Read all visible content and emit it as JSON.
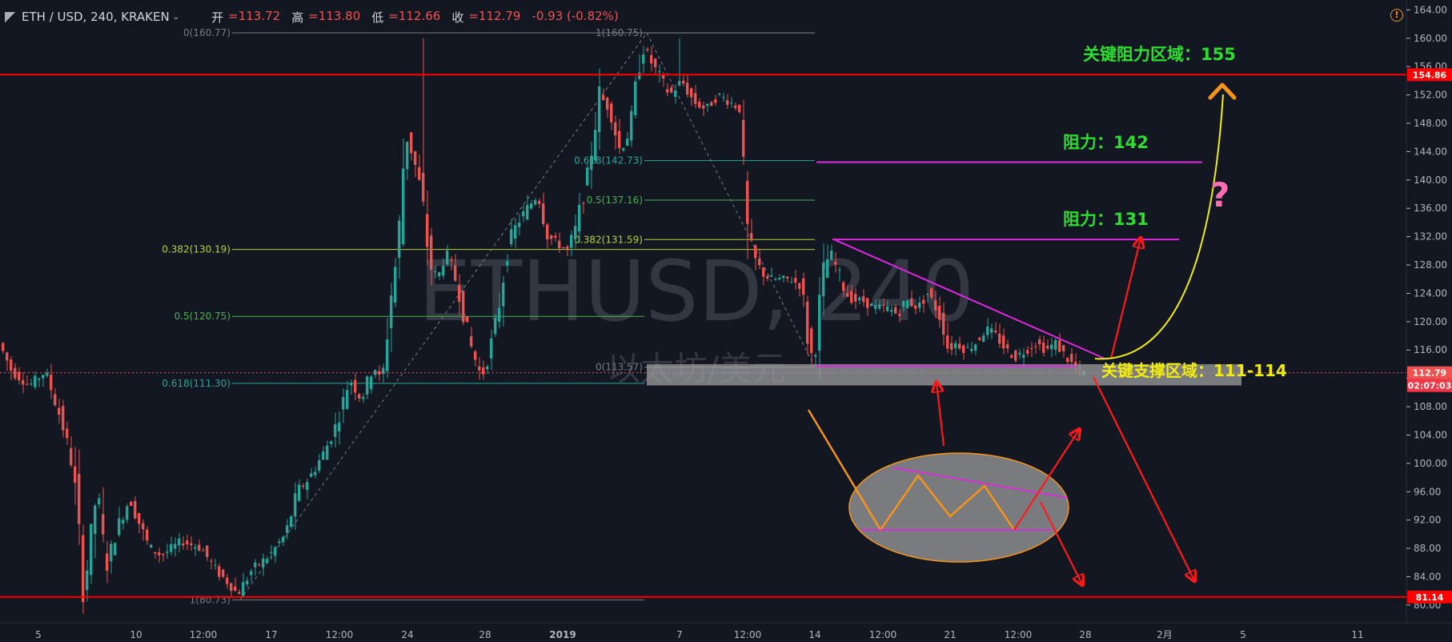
{
  "header": {
    "symbol": "ETH / USD, 240, KRAKEN",
    "open_label": "开",
    "open_value": "=113.72",
    "high_label": "高",
    "high_value": "=113.80",
    "low_label": "低",
    "low_value": "=112.66",
    "close_label": "收",
    "close_value": "=112.79",
    "change": "-0.93 (-0.82%)"
  },
  "watermark": {
    "symbol": "ETHUSD, 240",
    "name": "以太坊/美元"
  },
  "colors": {
    "background": "#131722",
    "up": "#26a69a",
    "down": "#ef5350",
    "axis_text": "#b2b5be",
    "resistance_line": "#ff0000",
    "trendline": "#e028e0",
    "annotation_green": "#2ede2e",
    "annotation_yellow": "#f2ec0c",
    "orange": "#f7931a"
  },
  "chart_data": {
    "type": "candlestick",
    "title": "ETH / USD, 240, KRAKEN",
    "y_axis": {
      "ylim": [
        77.5,
        165.4
      ],
      "ticks": [
        "164.00",
        "160.00",
        "156.00",
        "152.00",
        "148.00",
        "144.00",
        "140.00",
        "136.00",
        "132.00",
        "128.00",
        "124.00",
        "120.00",
        "116.00",
        "112.00",
        "108.00",
        "104.00",
        "100.00",
        "96.00",
        "92.00",
        "88.00",
        "84.00",
        "80.00"
      ]
    },
    "x_axis": {
      "ticks": [
        "5",
        "10",
        "12:00",
        "17",
        "12:00",
        "24",
        "28",
        "2019",
        "7",
        "12:00",
        "14",
        "12:00",
        "21",
        "12:00",
        "28",
        "2月",
        "5",
        "11"
      ]
    },
    "price_labels": [
      {
        "value": "154.86",
        "kind": "line"
      },
      {
        "value": "112.79",
        "kind": "last"
      },
      {
        "value": "02:07:03",
        "kind": "countdown"
      },
      {
        "value": "81.14",
        "kind": "line"
      }
    ],
    "horizontal_levels": [
      154.86,
      81.14
    ],
    "last_price": 112.79,
    "fib_retracement_1": [
      {
        "label": "0(160.77)",
        "value": 160.77
      },
      {
        "label": "0.382(130.19)",
        "value": 130.19
      },
      {
        "label": "0.5(120.75)",
        "value": 120.75
      },
      {
        "label": "0.618(111.30)",
        "value": 111.3
      },
      {
        "label": "1(80.73)",
        "value": 80.73
      }
    ],
    "fib_retracement_2": [
      {
        "label": "1(160.75)",
        "value": 160.75
      },
      {
        "label": "0.618(142.73)",
        "value": 142.73
      },
      {
        "label": "0.5(137.16)",
        "value": 137.16
      },
      {
        "label": "0.382(131.59)",
        "value": 131.59
      },
      {
        "label": "0(113.57)",
        "value": 113.57
      }
    ],
    "annotations": [
      {
        "text": "关键阻力区域：155",
        "color": "green"
      },
      {
        "text": "阻力：142",
        "color": "green"
      },
      {
        "text": "阻力：131",
        "color": "green"
      },
      {
        "text": "关键支撑区域：111-114",
        "color": "yellow"
      },
      {
        "text": "?",
        "color": "pink"
      }
    ],
    "support_zone": [
      111,
      114
    ],
    "resistance_levels": [
      142,
      131
    ]
  }
}
